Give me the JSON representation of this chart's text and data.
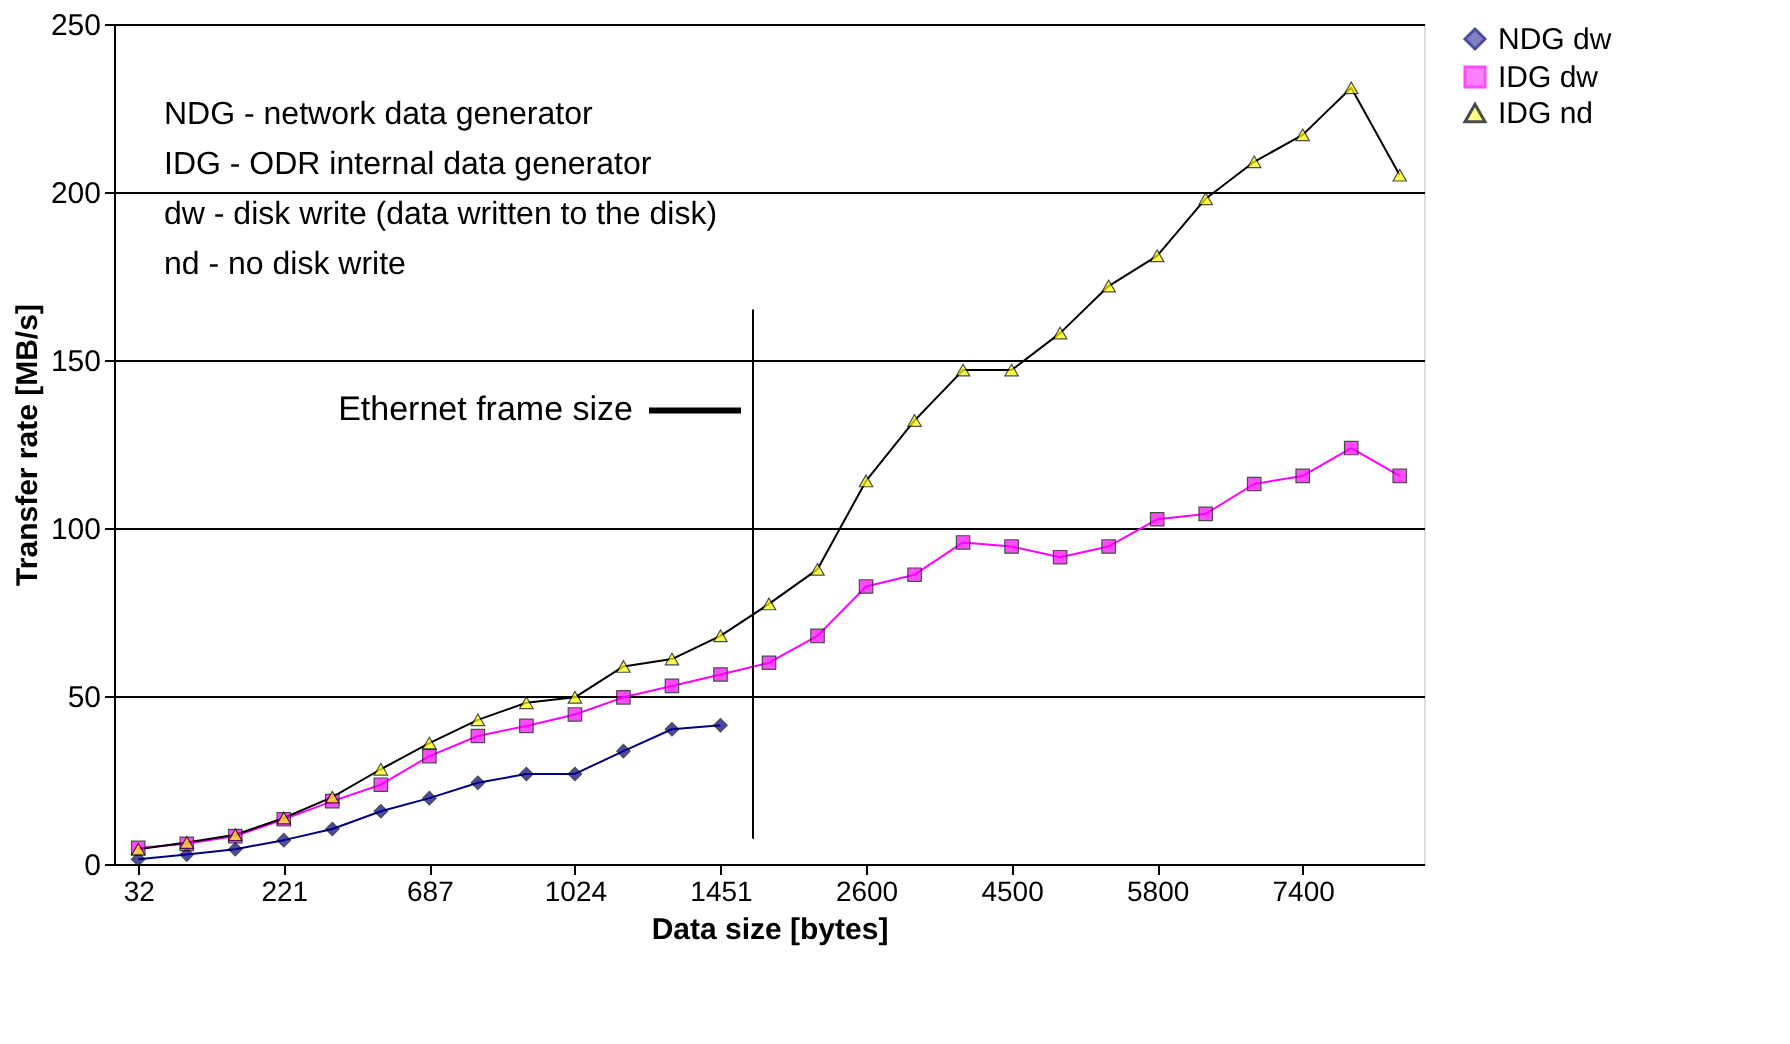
{
  "chart_data": {
    "type": "line",
    "xlabel": "Data size [bytes]",
    "ylabel": "Transfer rate [MB/s]",
    "categories": [
      "32",
      null,
      null,
      "221",
      null,
      null,
      "687",
      null,
      null,
      "1024",
      null,
      null,
      "1451",
      null,
      null,
      "2600",
      null,
      null,
      "4500",
      null,
      null,
      "5800",
      null,
      null,
      "7400",
      null,
      null
    ],
    "series": [
      {
        "name": "NDG dw",
        "color": "#000080",
        "marker": "diamond",
        "values": [
          1.4,
          2.8,
          4.4,
          7.1,
          10.4,
          15.7,
          19.6,
          24.2,
          26.8,
          26.8,
          33.6,
          40.1,
          41.3,
          null,
          null,
          null,
          null,
          null,
          null,
          null,
          null,
          null,
          null,
          null,
          null,
          null,
          null
        ]
      },
      {
        "name": "IDG dw",
        "color": "#ff00ff",
        "marker": "square",
        "values": [
          4.8,
          6,
          8.3,
          13.3,
          18.7,
          23.6,
          32.1,
          38.1,
          41.1,
          44.5,
          49.6,
          53,
          56.4,
          59.9,
          67.9,
          82.6,
          86.1,
          95.7,
          94.5,
          91.3,
          94.5,
          102.6,
          104.2,
          113.1,
          115.5,
          123.8,
          115.5
        ]
      },
      {
        "name": "IDG nd",
        "color": "#000000",
        "marker": "triangle",
        "values": [
          4.4,
          6.4,
          8.7,
          13.7,
          19.9,
          28.2,
          36,
          42.9,
          48,
          49.6,
          58.8,
          61,
          67.9,
          77.4,
          87.7,
          114,
          132,
          147,
          147,
          158,
          172,
          181,
          198,
          209,
          217,
          231,
          205
        ]
      }
    ],
    "ylim": [
      0,
      250
    ],
    "yticks": [
      0,
      50,
      100,
      150,
      200,
      250
    ],
    "grid": "y",
    "legend": "right",
    "line_style": "solid",
    "annotations": [
      "NDG - network data generator",
      "IDG - ODR internal data generator",
      "dw - disk write (data written to the disk)",
      "nd - no disk write",
      "Ethernet frame size"
    ]
  }
}
